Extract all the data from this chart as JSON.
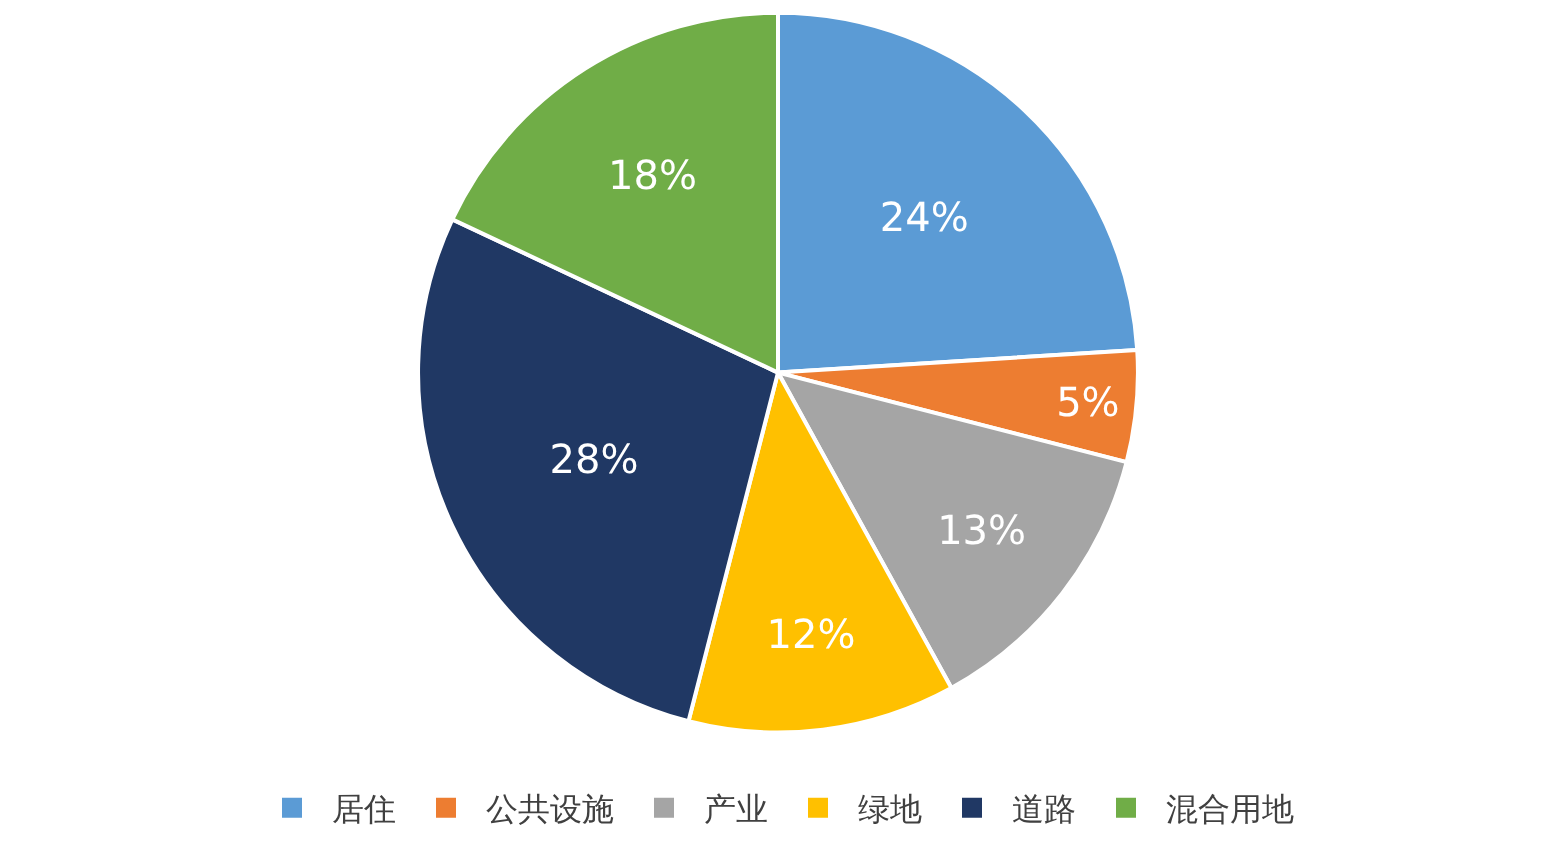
{
  "chart_data": {
    "type": "pie",
    "categories": [
      "居住",
      "公共设施",
      "产业",
      "绿地",
      "道路",
      "混合用地"
    ],
    "values": [
      24,
      5,
      13,
      12,
      28,
      18
    ],
    "value_labels": [
      "24%",
      "5%",
      "13%",
      "12%",
      "28%",
      "18%"
    ],
    "colors": [
      "#5b9bd5",
      "#ed7d31",
      "#a5a5a5",
      "#ffc000",
      "#203864",
      "#70ad47"
    ],
    "legend": "bottom"
  }
}
